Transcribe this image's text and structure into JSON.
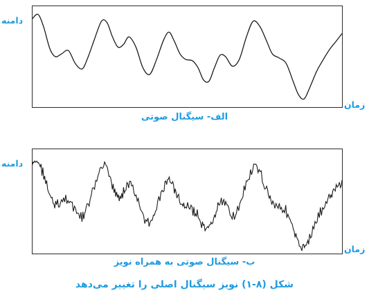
{
  "panels": [
    {
      "y_label": "دامنه",
      "x_label": "زمان",
      "caption": "الف- سیگنال صوتی",
      "noisy": false
    },
    {
      "y_label": "دامنه",
      "x_label": "زمان",
      "caption": "ب- سیگنال صوتی به همراه نویز",
      "noisy": true
    }
  ],
  "figure_caption": "شکل (۸-۱) نویز سیگنال اصلی را تغییر می‌دهد",
  "colors": {
    "label": "#1e9be0",
    "line": "#1a1a1a"
  }
}
